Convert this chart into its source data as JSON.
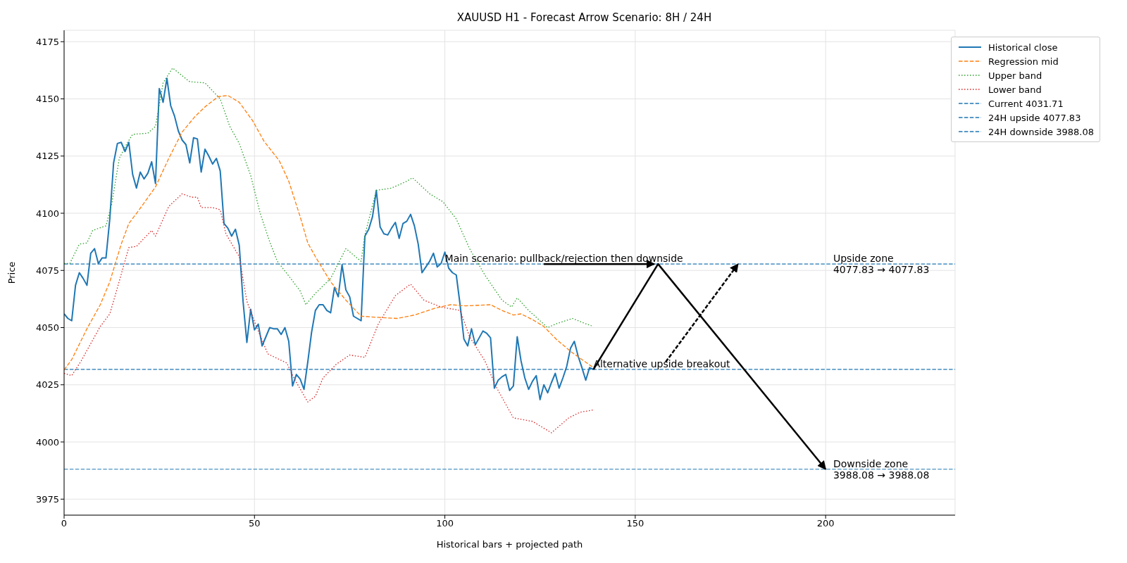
{
  "chart_data": {
    "type": "line",
    "title": "XAUUSD H1 - Forecast Arrow Scenario: 8H / 24H",
    "xlabel": "Historical bars + projected path",
    "ylabel": "Price",
    "xlim": [
      0,
      234
    ],
    "ylim": [
      3968,
      4180
    ],
    "xticks": [
      0,
      50,
      100,
      150,
      200
    ],
    "yticks": [
      3975,
      4000,
      4025,
      4050,
      4075,
      4100,
      4125,
      4150,
      4175
    ],
    "grid": true,
    "legend": "top right",
    "series": [
      {
        "name": "Historical close",
        "color": "#1f77b4",
        "line_style": "solid",
        "x": [
          0,
          1,
          2,
          3,
          4,
          5,
          6,
          7,
          8,
          9,
          10,
          11,
          12,
          13,
          14,
          15,
          16,
          17,
          18,
          19,
          20,
          21,
          22,
          23,
          24,
          25,
          26,
          27,
          28,
          29,
          30,
          31,
          32,
          33,
          34,
          35,
          36,
          37,
          38,
          39,
          40,
          41,
          42,
          43,
          44,
          45,
          46,
          47,
          48,
          49,
          50,
          51,
          52,
          53,
          54,
          55,
          56,
          57,
          58,
          59,
          60,
          61,
          62,
          63,
          64,
          65,
          66,
          67,
          68,
          69,
          70,
          71,
          72,
          73,
          74,
          75,
          76,
          77,
          78,
          79,
          80,
          81,
          82,
          83,
          84,
          85,
          86,
          87,
          88,
          89,
          90,
          91,
          92,
          93,
          94,
          95,
          96,
          97,
          98,
          99,
          100,
          101,
          102,
          103,
          104,
          105,
          106,
          107,
          108,
          109,
          110,
          111,
          112,
          113,
          114,
          115,
          116,
          117,
          118,
          119,
          120,
          121,
          122,
          123,
          124,
          125,
          126,
          127,
          128,
          129,
          130,
          131,
          132,
          133,
          134,
          135,
          136,
          137,
          138,
          139
        ],
        "values": [
          4056,
          4054,
          4053,
          4068.5,
          4074,
          4071.5,
          4068.5,
          4082.5,
          4084.5,
          4078,
          4080.5,
          4080.5,
          4097.5,
          4122,
          4130.5,
          4131,
          4127,
          4131,
          4117,
          4111,
          4118,
          4115,
          4117.5,
          4122.5,
          4113,
          4154.5,
          4148.5,
          4159,
          4147,
          4142.5,
          4136,
          4132,
          4130,
          4122,
          4133,
          4132.5,
          4118,
          4128,
          4125,
          4121.5,
          4124,
          4118.5,
          4095.5,
          4093.5,
          4090,
          4093,
          4086,
          4061.5,
          4043.5,
          4058,
          4049,
          4051.5,
          4042,
          4046,
          4050,
          4049.5,
          4049.5,
          4047,
          4050,
          4044,
          4024.5,
          4029.5,
          4027.5,
          4023,
          4035,
          4048,
          4057.5,
          4060,
          4060,
          4057.5,
          4056.5,
          4067.5,
          4063.5,
          4077.5,
          4066.5,
          4063.5,
          4055,
          4054,
          4053,
          4090,
          4093,
          4098.5,
          4110,
          4094,
          4091,
          4090.5,
          4093.5,
          4096,
          4089,
          4095.5,
          4096.5,
          4099.5,
          4094.5,
          4086.5,
          4074,
          4076.5,
          4079,
          4082.5,
          4076.5,
          4078,
          4083,
          4076,
          4074,
          4073,
          4060,
          4045,
          4042,
          4049.5,
          4042.5,
          4045.5,
          4048.5,
          4047.5,
          4045.5,
          4023.5,
          4027,
          4028.5,
          4029.5,
          4022.5,
          4024.5,
          4046,
          4035.5,
          4028,
          4023,
          4026.5,
          4029,
          4018.5,
          4025,
          4021.5,
          4026,
          4030,
          4023.5,
          4028,
          4033,
          4041,
          4044,
          4037.5,
          4032.5,
          4027,
          4032.5,
          4031.7
        ]
      },
      {
        "name": "Regression mid",
        "color": "#ff7f0e",
        "line_style": "dashed",
        "x": [
          0,
          2,
          6,
          9.5,
          12,
          15,
          17,
          19.5,
          24,
          27.5,
          31,
          34.5,
          37,
          40.5,
          43,
          46,
          49.5,
          52.5,
          56.5,
          59,
          62,
          64,
          66,
          70,
          74,
          78,
          82,
          87.5,
          92,
          97.5,
          101.5,
          105.5,
          112,
          115,
          118,
          120,
          123,
          126,
          129.5,
          133.5,
          139
        ],
        "values": [
          4031.5,
          4036,
          4049.5,
          4060,
          4070,
          4086.5,
          4095.5,
          4101,
          4111.5,
          4124,
          4135.5,
          4142.5,
          4146.5,
          4151,
          4151.5,
          4148.5,
          4140.5,
          4131.5,
          4123,
          4114,
          4098.5,
          4087,
          4081,
          4070,
          4062,
          4055,
          4054.5,
          4054,
          4055.5,
          4058.5,
          4060,
          4059.5,
          4060,
          4057.5,
          4055.5,
          4056,
          4053.5,
          4050.5,
          4044.5,
          4039,
          4032.5
        ]
      },
      {
        "name": "Upper band",
        "color": "#2ca02c",
        "line_style": "dotted",
        "x": [
          0,
          1.5,
          4,
          6,
          7.5,
          11,
          12.5,
          14.5,
          16.5,
          18,
          22,
          24,
          26,
          28.5,
          33,
          37,
          41,
          43.5,
          46,
          49,
          51.5,
          54,
          56,
          59.5,
          62,
          63.5,
          66,
          70,
          74,
          78,
          79,
          82,
          86,
          90,
          91.5,
          96,
          99.5,
          103,
          106.5,
          110.5,
          115,
          117.5,
          119,
          122,
          127,
          129,
          133.5,
          136.5,
          139
        ],
        "values": [
          4078,
          4078,
          4086.5,
          4087,
          4092.5,
          4094.5,
          4104,
          4124,
          4130.5,
          4134.5,
          4135,
          4138,
          4157,
          4163.5,
          4157.5,
          4157,
          4150,
          4138,
          4130.5,
          4116.5,
          4100,
          4087.5,
          4079,
          4071.5,
          4066,
          4060,
          4065,
          4071.5,
          4084.5,
          4079,
          4090.5,
          4110,
          4111,
          4114,
          4115.5,
          4108.5,
          4105,
          4097.5,
          4084.5,
          4073,
          4062,
          4059,
          4063,
          4057.5,
          4050,
          4051.5,
          4054,
          4052,
          4050.5
        ]
      },
      {
        "name": "Lower band",
        "color": "#d62728",
        "line_style": "dotted",
        "x": [
          0,
          2,
          4.5,
          7,
          9.5,
          12,
          13.5,
          17,
          19,
          23,
          24,
          27.5,
          31,
          33.5,
          35,
          36,
          39,
          41,
          42.5,
          46,
          48,
          50.5,
          53.5,
          56,
          58.5,
          60.5,
          64,
          66,
          68,
          71.5,
          75,
          79,
          82.5,
          87,
          91,
          94.5,
          99,
          104,
          106.5,
          110.5,
          113.5,
          118,
          123,
          128,
          132.5,
          135.5,
          139
        ],
        "values": [
          4030,
          4029,
          4035.5,
          4043,
          4050.5,
          4056,
          4064.5,
          4085,
          4085.5,
          4092.5,
          4090,
          4103,
          4108.5,
          4107,
          4107,
          4102.5,
          4102.5,
          4101.5,
          4091,
          4081,
          4061.5,
          4050.5,
          4038.5,
          4036.5,
          4034.5,
          4027.5,
          4017.5,
          4020,
          4028,
          4034,
          4038,
          4037,
          4051.5,
          4064,
          4069,
          4062,
          4059,
          4057.5,
          4046,
          4035.5,
          4024,
          4010.5,
          4009,
          4004,
          4010.5,
          4013,
          4014
        ]
      },
      {
        "color": "#000000",
        "line_style": "solid",
        "x": [
          139,
          156,
          200
        ],
        "values": [
          4031.7,
          4077.8,
          3988.1
        ]
      },
      {
        "color": "#000000",
        "line_style": "solid",
        "x": [
          126,
          155
        ],
        "values": [
          4077.8,
          4077.8
        ]
      },
      {
        "color": "#000000",
        "line_style": "dashed",
        "x": [
          158,
          177
        ],
        "values": [
          4035,
          4077.8
        ]
      }
    ],
    "ref_lines": [
      {
        "axis": "y",
        "value": 4031.71,
        "label": "Current 4031.71",
        "color": "#1f77b4",
        "line_style": "dashed"
      },
      {
        "axis": "y",
        "value": 4077.83,
        "label": "24H upside 4077.83",
        "color": "#1f77b4",
        "line_style": "dashed"
      },
      {
        "axis": "y",
        "value": 3988.08,
        "label": "24H downside 3988.08",
        "color": "#1f77b4",
        "line_style": "dashed"
      }
    ],
    "annotations": [
      {
        "text": "Main scenario: pullback/rejection then downside",
        "x": 100,
        "y": 4077.83
      },
      {
        "text": "Alternative upside breakout",
        "x": 139,
        "y": 4031.71
      },
      {
        "text": "Upside zone\n4077.83 → 4077.83",
        "x": 202,
        "y": 4077.83
      },
      {
        "text": "Downside zone\n3988.08 → 3988.08",
        "x": 202,
        "y": 3988.08
      }
    ]
  }
}
